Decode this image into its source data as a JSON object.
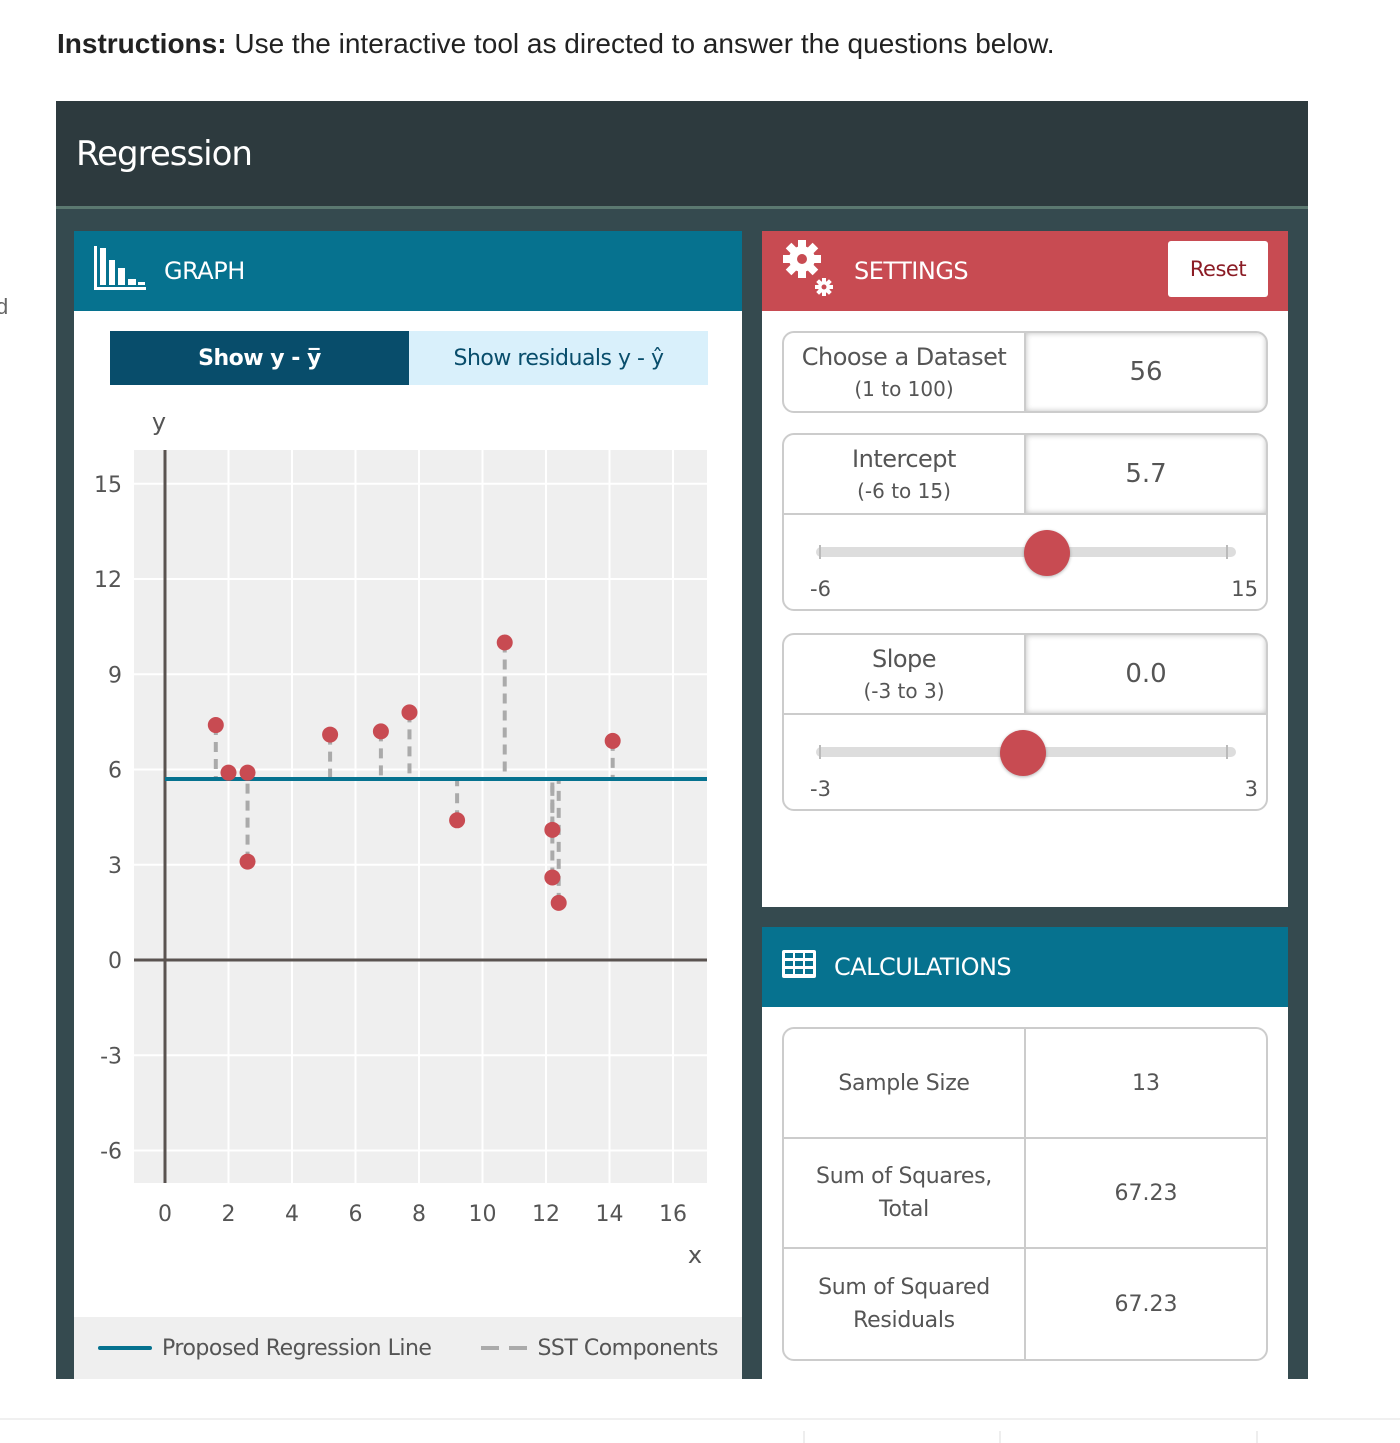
{
  "instructions": {
    "bold": "Instructions:",
    "text": " Use the interactive tool as directed to answer the questions below."
  },
  "edge_fragment": "d",
  "app": {
    "title": "Regression"
  },
  "graph": {
    "header": "GRAPH",
    "icon": "bar-chart-icon",
    "toggle": {
      "active_label": "Show y - y̅",
      "inactive_label": "Show residuals y - ŷ"
    },
    "legend": {
      "line_label": "Proposed Regression Line",
      "dash_label": "SST Components"
    }
  },
  "settings": {
    "header": "SETTINGS",
    "icon": "gears-icon",
    "reset_label": "Reset",
    "dataset": {
      "label": "Choose a Dataset",
      "range": "(1 to 100)",
      "value": "56"
    },
    "intercept": {
      "label": "Intercept",
      "range": "(-6 to 15)",
      "value": "5.7",
      "min": "-6",
      "max": "15"
    },
    "slope": {
      "label": "Slope",
      "range": "(-3 to 3)",
      "value": "0.0",
      "min": "-3",
      "max": "3"
    }
  },
  "calculations": {
    "header": "CALCULATIONS",
    "icon": "table-icon",
    "rows": [
      {
        "label": "Sample Size",
        "value": "13"
      },
      {
        "label": "Sum of Squares, Total",
        "value": "67.23"
      },
      {
        "label": "Sum of Squared Residuals",
        "value": "67.23"
      }
    ]
  },
  "colors": {
    "app_bg": "#354a4f",
    "app_header": "#2d3a3e",
    "graph_header": "#06728f",
    "settings_header": "#c84b52",
    "point": "#c84b52",
    "regression_line": "#06728f",
    "sst_dash": "#aaaaaa",
    "toggle_active": "#084d6b",
    "toggle_inactive": "#d9f0fb"
  },
  "chart_data": {
    "type": "scatter",
    "title": "",
    "xlabel": "x",
    "ylabel": "y",
    "xlim": [
      0,
      17
    ],
    "ylim": [
      -7,
      16
    ],
    "x_ticks": [
      0,
      2,
      4,
      6,
      8,
      10,
      12,
      14,
      16
    ],
    "y_ticks": [
      -6,
      -3,
      0,
      3,
      6,
      9,
      12,
      15
    ],
    "grid": true,
    "legend_position": "bottom",
    "legend": [
      "Proposed Regression Line",
      "SST Components"
    ],
    "points": [
      {
        "x": 1.6,
        "y": 7.4
      },
      {
        "x": 2.0,
        "y": 5.9
      },
      {
        "x": 2.6,
        "y": 5.9
      },
      {
        "x": 2.6,
        "y": 3.1
      },
      {
        "x": 5.2,
        "y": 7.1
      },
      {
        "x": 6.8,
        "y": 7.2
      },
      {
        "x": 7.7,
        "y": 7.8
      },
      {
        "x": 9.2,
        "y": 4.4
      },
      {
        "x": 10.7,
        "y": 10.0
      },
      {
        "x": 12.2,
        "y": 4.1
      },
      {
        "x": 12.2,
        "y": 2.6
      },
      {
        "x": 12.4,
        "y": 1.8
      },
      {
        "x": 14.1,
        "y": 6.9
      }
    ],
    "line": {
      "intercept": 5.7,
      "slope": 0.0
    },
    "mean_y": 5.7
  }
}
